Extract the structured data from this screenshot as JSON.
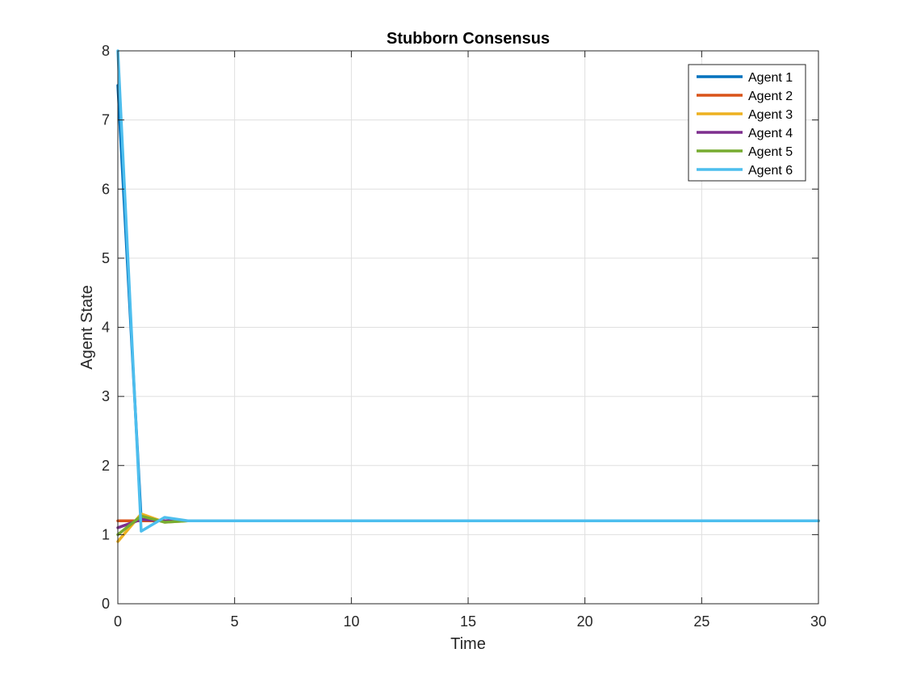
{
  "chart_data": {
    "type": "line",
    "title": "Stubborn Consensus",
    "xlabel": "Time",
    "ylabel": "Agent State",
    "xlim": [
      0,
      30
    ],
    "ylim": [
      0,
      8
    ],
    "xticks": [
      0,
      5,
      10,
      15,
      20,
      25,
      30
    ],
    "yticks": [
      0,
      1,
      2,
      3,
      4,
      5,
      6,
      7,
      8
    ],
    "grid": true,
    "legend_position": "top-right",
    "x": [
      0,
      1,
      2,
      3,
      4,
      5,
      6,
      7,
      8,
      9,
      10,
      11,
      12,
      13,
      14,
      15,
      16,
      17,
      18,
      19,
      20,
      21,
      22,
      23,
      24,
      25,
      26,
      27,
      28,
      29,
      30
    ],
    "series": [
      {
        "name": "Agent 1",
        "color": "#0072BD",
        "values": [
          7.5,
          1.22,
          1.2,
          1.2,
          1.2,
          1.2,
          1.2,
          1.2,
          1.2,
          1.2,
          1.2,
          1.2,
          1.2,
          1.2,
          1.2,
          1.2,
          1.2,
          1.2,
          1.2,
          1.2,
          1.2,
          1.2,
          1.2,
          1.2,
          1.2,
          1.2,
          1.2,
          1.2,
          1.2,
          1.2,
          1.2
        ]
      },
      {
        "name": "Agent 2",
        "color": "#D95319",
        "values": [
          1.2,
          1.2,
          1.2,
          1.2,
          1.2,
          1.2,
          1.2,
          1.2,
          1.2,
          1.2,
          1.2,
          1.2,
          1.2,
          1.2,
          1.2,
          1.2,
          1.2,
          1.2,
          1.2,
          1.2,
          1.2,
          1.2,
          1.2,
          1.2,
          1.2,
          1.2,
          1.2,
          1.2,
          1.2,
          1.2,
          1.2
        ]
      },
      {
        "name": "Agent 3",
        "color": "#EDB120",
        "values": [
          0.9,
          1.3,
          1.18,
          1.2,
          1.2,
          1.2,
          1.2,
          1.2,
          1.2,
          1.2,
          1.2,
          1.2,
          1.2,
          1.2,
          1.2,
          1.2,
          1.2,
          1.2,
          1.2,
          1.2,
          1.2,
          1.2,
          1.2,
          1.2,
          1.2,
          1.2,
          1.2,
          1.2,
          1.2,
          1.2,
          1.2
        ]
      },
      {
        "name": "Agent 4",
        "color": "#7E2F8E",
        "values": [
          1.1,
          1.22,
          1.2,
          1.2,
          1.2,
          1.2,
          1.2,
          1.2,
          1.2,
          1.2,
          1.2,
          1.2,
          1.2,
          1.2,
          1.2,
          1.2,
          1.2,
          1.2,
          1.2,
          1.2,
          1.2,
          1.2,
          1.2,
          1.2,
          1.2,
          1.2,
          1.2,
          1.2,
          1.2,
          1.2,
          1.2
        ]
      },
      {
        "name": "Agent 5",
        "color": "#77AC30",
        "values": [
          1.0,
          1.27,
          1.18,
          1.2,
          1.2,
          1.2,
          1.2,
          1.2,
          1.2,
          1.2,
          1.2,
          1.2,
          1.2,
          1.2,
          1.2,
          1.2,
          1.2,
          1.2,
          1.2,
          1.2,
          1.2,
          1.2,
          1.2,
          1.2,
          1.2,
          1.2,
          1.2,
          1.2,
          1.2,
          1.2,
          1.2
        ]
      },
      {
        "name": "Agent 6",
        "color": "#4DBEEE",
        "values": [
          8.0,
          1.05,
          1.25,
          1.2,
          1.2,
          1.2,
          1.2,
          1.2,
          1.2,
          1.2,
          1.2,
          1.2,
          1.2,
          1.2,
          1.2,
          1.2,
          1.2,
          1.2,
          1.2,
          1.2,
          1.2,
          1.2,
          1.2,
          1.2,
          1.2,
          1.2,
          1.2,
          1.2,
          1.2,
          1.2,
          1.2
        ]
      }
    ]
  }
}
